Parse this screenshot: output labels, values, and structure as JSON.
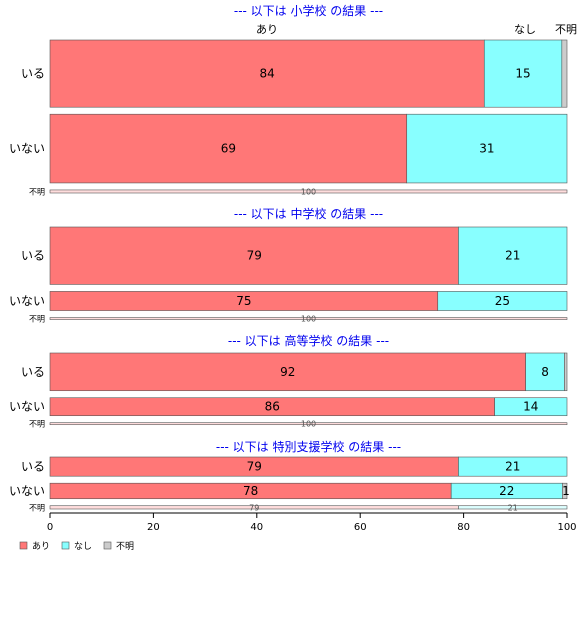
{
  "chart_data": {
    "type": "bar",
    "orientation": "horizontal",
    "stacked": true,
    "percent": true,
    "xlim": [
      0,
      100
    ],
    "x_ticks": [
      "0",
      "20",
      "40",
      "60",
      "80",
      "100"
    ],
    "segments": [
      "あり",
      "なし",
      "不明"
    ],
    "colors": [
      "#ff7777",
      "#88ffff",
      "#cccccc"
    ],
    "top_labels": [
      "あり",
      "なし",
      "不明"
    ],
    "legend": {
      "placement": "bottom-left",
      "entries": [
        "あり",
        "なし",
        "不明"
      ]
    },
    "panels": [
      {
        "title": "--- 以下は 小学校 の結果 ---",
        "rows": [
          {
            "label": "いる",
            "values": [
              84,
              15,
              1
            ],
            "labels": [
              "84",
              "15",
              ""
            ],
            "weight": 0.44
          },
          {
            "label": "いない",
            "values": [
              69,
              31,
              0
            ],
            "labels": [
              "69",
              "31",
              ""
            ],
            "weight": 0.45
          },
          {
            "label": "不明",
            "values": [
              100,
              0,
              0
            ],
            "labels": [
              "100",
              "",
              ""
            ],
            "weight": 0.02,
            "small": true
          }
        ]
      },
      {
        "title": "--- 以下は 中学校 の結果 ---",
        "rows": [
          {
            "label": "いる",
            "values": [
              79,
              21,
              0
            ],
            "labels": [
              "79",
              "21",
              ""
            ],
            "weight": 0.66
          },
          {
            "label": "いない",
            "values": [
              75,
              25,
              0
            ],
            "labels": [
              "75",
              "25",
              ""
            ],
            "weight": 0.22
          },
          {
            "label": "不明",
            "values": [
              100,
              0,
              0
            ],
            "labels": [
              "100",
              "",
              ""
            ],
            "weight": 0.005,
            "small": true
          }
        ]
      },
      {
        "title": "--- 以下は 高等学校 の結果 ---",
        "rows": [
          {
            "label": "いる",
            "values": [
              92,
              7.5,
              0.5
            ],
            "labels": [
              "92",
              "8",
              ""
            ],
            "weight": 0.65
          },
          {
            "label": "いない",
            "values": [
              86,
              14,
              0
            ],
            "labels": [
              "86",
              "14",
              ""
            ],
            "weight": 0.31
          },
          {
            "label": "不明",
            "values": [
              100,
              0,
              0
            ],
            "labels": [
              "100",
              "",
              ""
            ],
            "weight": 0.005,
            "small": true
          }
        ]
      },
      {
        "title": "--- 以下は 特別支援学校 の結果 ---",
        "rows": [
          {
            "label": "いる",
            "values": [
              79,
              21,
              0
            ],
            "labels": [
              "79",
              "21",
              ""
            ],
            "weight": 0.47
          },
          {
            "label": "いない",
            "values": [
              77.6,
              21.5,
              0.9
            ],
            "labels": [
              "78",
              "22",
              "1"
            ],
            "weight": 0.38
          },
          {
            "label": "不明",
            "values": [
              79,
              21,
              0
            ],
            "labels": [
              "79",
              "21",
              ""
            ],
            "weight": 0.08,
            "small": true
          }
        ]
      }
    ]
  }
}
